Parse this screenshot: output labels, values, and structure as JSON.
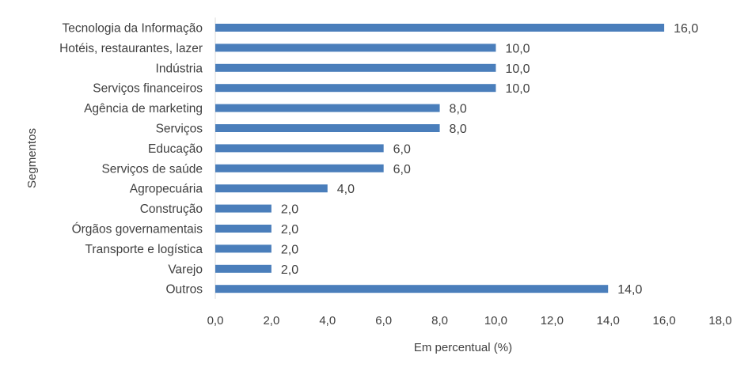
{
  "chart_data": {
    "type": "bar",
    "orientation": "horizontal",
    "categories": [
      "Tecnologia da Informação",
      "Hotéis, restaurantes, lazer",
      "Indústria",
      "Serviços financeiros",
      "Agência de marketing",
      "Serviços",
      "Educação",
      "Serviços de saúde",
      "Agropecuária",
      "Construção",
      "Órgãos governamentais",
      "Transporte e logística",
      "Varejo",
      "Outros"
    ],
    "values": [
      16.0,
      10.0,
      10.0,
      10.0,
      8.0,
      8.0,
      6.0,
      6.0,
      4.0,
      2.0,
      2.0,
      2.0,
      2.0,
      14.0
    ],
    "value_labels": [
      "16,0",
      "10,0",
      "10,0",
      "10,0",
      "8,0",
      "8,0",
      "6,0",
      "6,0",
      "4,0",
      "2,0",
      "2,0",
      "2,0",
      "2,0",
      "14,0"
    ],
    "xlabel": "Em percentual (%)",
    "ylabel": "Segmentos",
    "xlim": [
      0,
      18
    ],
    "x_ticks": [
      0,
      2,
      4,
      6,
      8,
      10,
      12,
      14,
      16,
      18
    ],
    "x_tick_labels": [
      "0,0",
      "2,0",
      "4,0",
      "6,0",
      "8,0",
      "10,0",
      "12,0",
      "14,0",
      "16,0",
      "18,0"
    ],
    "grid": false,
    "legend": "none",
    "bar_color": "#4a7ebb"
  }
}
